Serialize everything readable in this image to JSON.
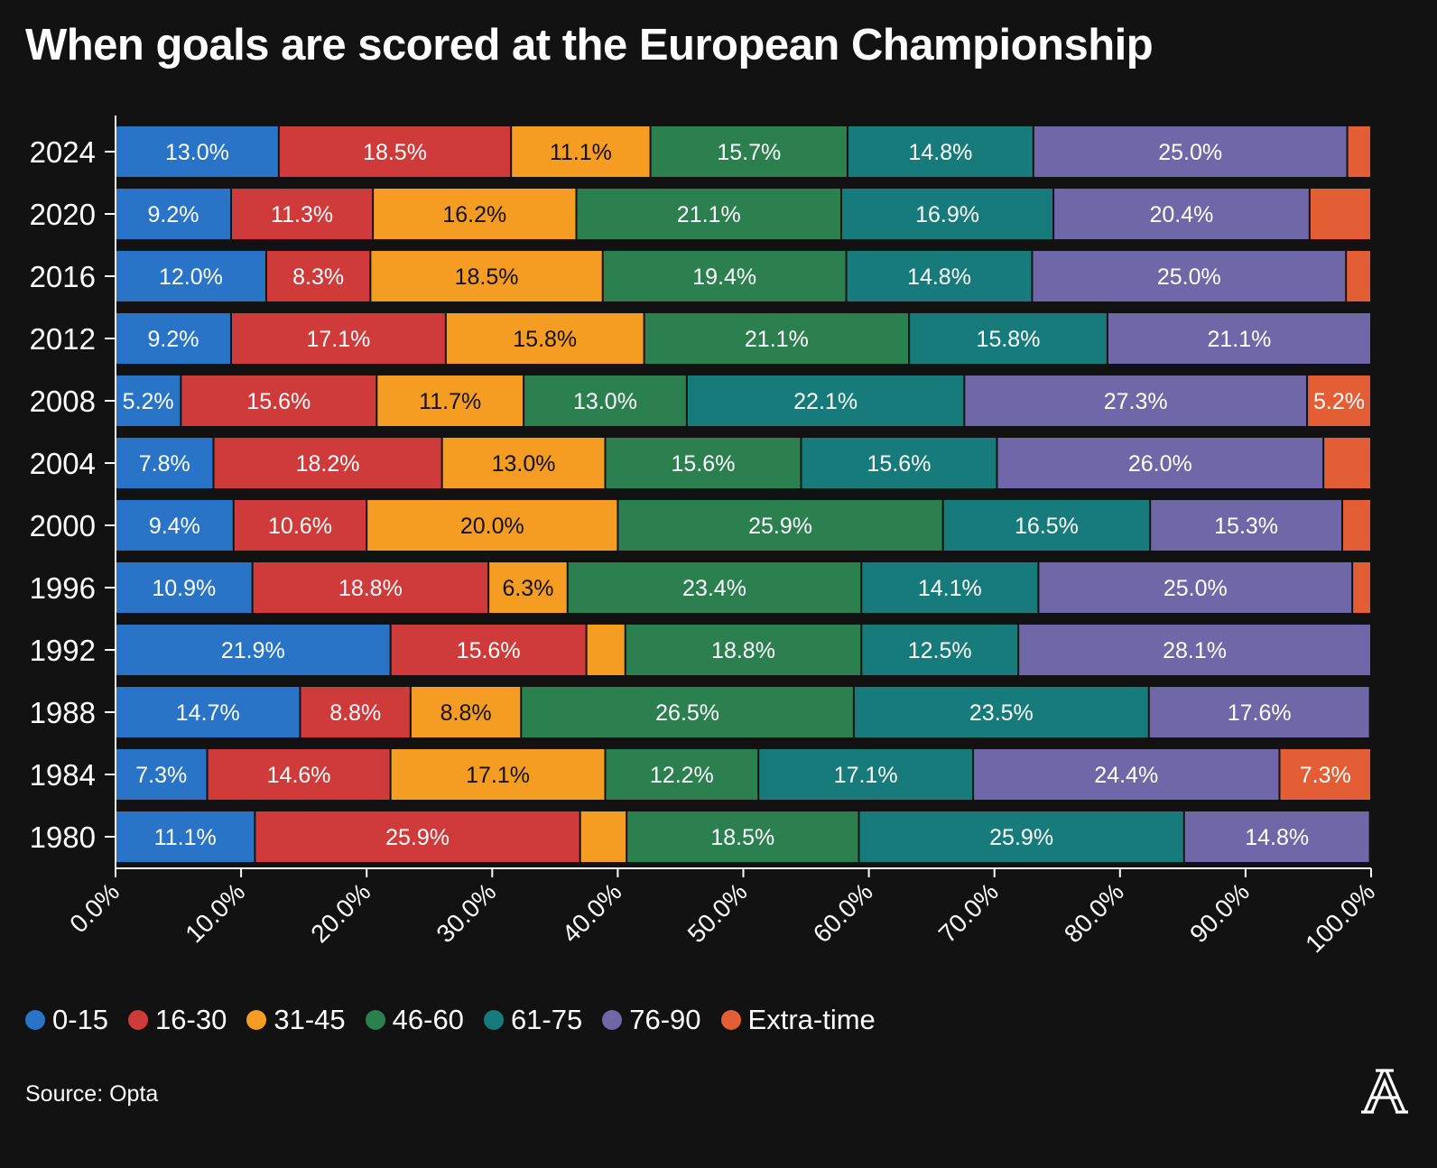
{
  "title": "When goals are scored at the European Championship",
  "source": "Source: Opta",
  "colors": {
    "background": "#121212",
    "0-15": "#2a74c8",
    "16-30": "#cf3a3a",
    "31-45": "#f59d23",
    "46-60": "#2c7f4e",
    "61-75": "#177b7b",
    "76-90": "#6f67a8",
    "Extra-time": "#e35e35"
  },
  "chart_data": {
    "type": "bar",
    "orientation": "horizontal",
    "stacked": true,
    "categories": [
      "2024",
      "2020",
      "2016",
      "2012",
      "2008",
      "2004",
      "2000",
      "1996",
      "1992",
      "1988",
      "1984",
      "1980"
    ],
    "series": [
      {
        "name": "0-15",
        "values": [
          13.0,
          9.2,
          12.0,
          9.2,
          5.2,
          7.8,
          9.4,
          10.9,
          21.9,
          14.7,
          7.3,
          11.1
        ],
        "labels": [
          "13.0%",
          "9.2%",
          "12.0%",
          "9.2%",
          "5.2%",
          "7.8%",
          "9.4%",
          "10.9%",
          "21.9%",
          "14.7%",
          "7.3%",
          "11.1%"
        ]
      },
      {
        "name": "16-30",
        "values": [
          18.5,
          11.3,
          8.3,
          17.1,
          15.6,
          18.2,
          10.6,
          18.8,
          15.6,
          8.8,
          14.6,
          25.9
        ],
        "labels": [
          "18.5%",
          "11.3%",
          "8.3%",
          "17.1%",
          "15.6%",
          "18.2%",
          "10.6%",
          "18.8%",
          "15.6%",
          "8.8%",
          "14.6%",
          "25.9%"
        ]
      },
      {
        "name": "31-45",
        "values": [
          11.1,
          16.2,
          18.5,
          15.8,
          11.7,
          13.0,
          20.0,
          6.3,
          3.1,
          8.8,
          17.1,
          3.7
        ],
        "labels": [
          "11.1%",
          "16.2%",
          "18.5%",
          "15.8%",
          "11.7%",
          "13.0%",
          "20.0%",
          "6.3%",
          "",
          "8.8%",
          "17.1%",
          ""
        ]
      },
      {
        "name": "46-60",
        "values": [
          15.7,
          21.1,
          19.4,
          21.1,
          13.0,
          15.6,
          25.9,
          23.4,
          18.8,
          26.5,
          12.2,
          18.5
        ],
        "labels": [
          "15.7%",
          "21.1%",
          "19.4%",
          "21.1%",
          "13.0%",
          "15.6%",
          "25.9%",
          "23.4%",
          "18.8%",
          "26.5%",
          "12.2%",
          "18.5%"
        ]
      },
      {
        "name": "61-75",
        "values": [
          14.8,
          16.9,
          14.8,
          15.8,
          22.1,
          15.6,
          16.5,
          14.1,
          12.5,
          23.5,
          17.1,
          25.9
        ],
        "labels": [
          "14.8%",
          "16.9%",
          "14.8%",
          "15.8%",
          "22.1%",
          "15.6%",
          "16.5%",
          "14.1%",
          "12.5%",
          "23.5%",
          "17.1%",
          "25.9%"
        ]
      },
      {
        "name": "76-90",
        "values": [
          25.0,
          20.4,
          25.0,
          21.1,
          27.3,
          26.0,
          15.3,
          25.0,
          28.1,
          17.6,
          24.4,
          14.8
        ],
        "labels": [
          "25.0%",
          "20.4%",
          "25.0%",
          "21.1%",
          "27.3%",
          "26.0%",
          "15.3%",
          "25.0%",
          "28.1%",
          "17.6%",
          "24.4%",
          "14.8%"
        ]
      },
      {
        "name": "Extra-time",
        "values": [
          1.9,
          4.9,
          2.0,
          0.0,
          5.2,
          3.9,
          2.4,
          1.6,
          0.0,
          0.0,
          7.3,
          0.0
        ],
        "labels": [
          "",
          "",
          "",
          "",
          "5.2%",
          "",
          "",
          "",
          "",
          "",
          "7.3%",
          ""
        ]
      }
    ],
    "xlim": [
      0,
      100
    ],
    "xticks": [
      "0.0%",
      "10.0%",
      "20.0%",
      "30.0%",
      "40.0%",
      "50.0%",
      "60.0%",
      "70.0%",
      "80.0%",
      "90.0%",
      "100.0%"
    ],
    "grid": false,
    "legend_position": "bottom"
  }
}
